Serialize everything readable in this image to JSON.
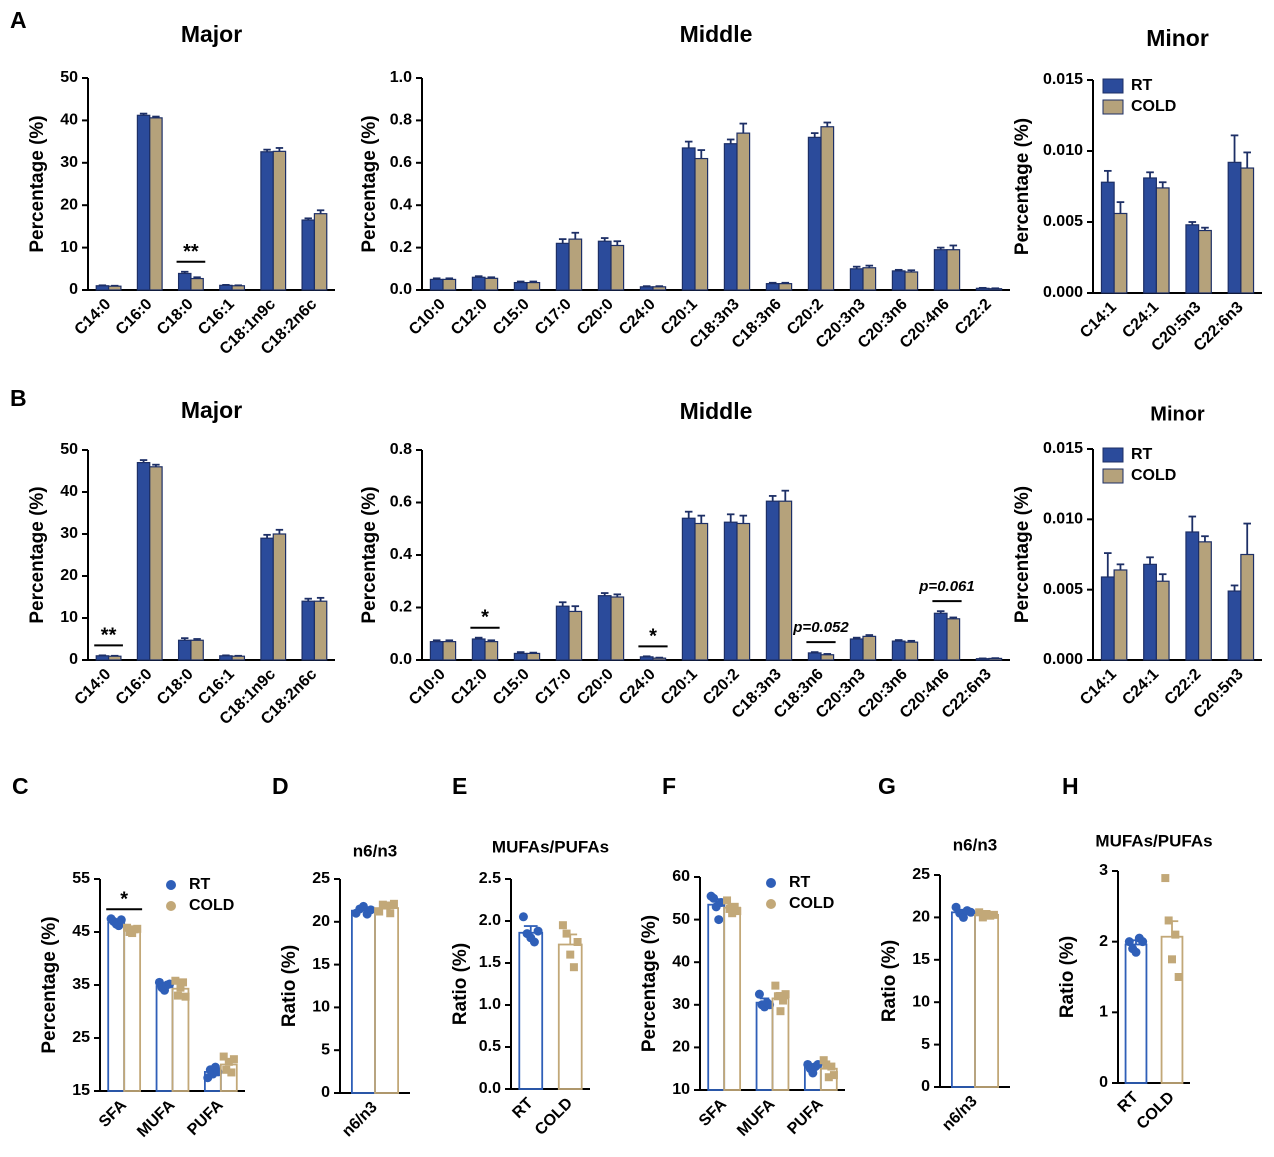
{
  "chart_data": [
    {
      "type": "bar",
      "panel": "A",
      "title": "Major",
      "ylabel": "Percentage (%)",
      "bar_fill": "solid",
      "categories": [
        "C14:0",
        "C16:0",
        "C18:0",
        "C16:1",
        "C18:1n9c",
        "C18:2n6c"
      ],
      "series": [
        {
          "name": "RT",
          "color": "#2b4b9b",
          "values": [
            1.0,
            41.2,
            3.9,
            1.1,
            32.6,
            16.5
          ],
          "errors": [
            0.1,
            0.4,
            0.4,
            0.1,
            0.5,
            0.4
          ]
        },
        {
          "name": "COLD",
          "color": "#b5a27b",
          "values": [
            0.9,
            40.6,
            2.7,
            1.0,
            32.7,
            18.0
          ],
          "errors": [
            0.1,
            0.3,
            0.3,
            0.1,
            0.8,
            0.8
          ]
        }
      ],
      "significance": [
        null,
        null,
        "**",
        null,
        null,
        null
      ],
      "ylim": [
        0,
        50
      ],
      "yticks": [
        0,
        10,
        20,
        30,
        40,
        50
      ]
    },
    {
      "type": "bar",
      "panel": null,
      "title": "Middle",
      "ylabel": "Percentage (%)",
      "bar_fill": "solid",
      "categories": [
        "C10:0",
        "C12:0",
        "C15:0",
        "C17:0",
        "C20:0",
        "C24:0",
        "C20:1",
        "C18:3n3",
        "C18:3n6",
        "C20:2",
        "C20:3n3",
        "C20:3n6",
        "C20:4n6",
        "C22:2"
      ],
      "series": [
        {
          "name": "RT",
          "color": "#2b4b9b",
          "values": [
            0.05,
            0.06,
            0.035,
            0.22,
            0.23,
            0.015,
            0.67,
            0.69,
            0.03,
            0.72,
            0.1,
            0.09,
            0.19,
            0.008
          ],
          "errors": [
            0.005,
            0.005,
            0.005,
            0.02,
            0.015,
            0.003,
            0.03,
            0.02,
            0.004,
            0.02,
            0.01,
            0.005,
            0.01,
            0.002
          ]
        },
        {
          "name": "COLD",
          "color": "#b5a27b",
          "values": [
            0.05,
            0.055,
            0.035,
            0.24,
            0.21,
            0.015,
            0.62,
            0.74,
            0.03,
            0.77,
            0.105,
            0.085,
            0.19,
            0.006
          ],
          "errors": [
            0.005,
            0.005,
            0.005,
            0.03,
            0.02,
            0.003,
            0.04,
            0.045,
            0.004,
            0.02,
            0.01,
            0.008,
            0.02,
            0.002
          ]
        }
      ],
      "ylim": [
        0,
        1
      ],
      "yticks": [
        {
          "value": 0,
          "label": "0.0"
        },
        0.2,
        0.4,
        0.6,
        0.8,
        {
          "value": 1,
          "label": "1.0"
        }
      ]
    },
    {
      "type": "bar",
      "panel": null,
      "title": "Minor",
      "ylabel": "Percentage (%)",
      "bar_fill": "solid",
      "legend": "upper left",
      "categories": [
        "C14:1",
        "C24:1",
        "C20:5n3",
        "C22:6n3"
      ],
      "series": [
        {
          "name": "RT",
          "color": "#2b4b9b",
          "values": [
            0.0078,
            0.0081,
            0.0048,
            0.0092
          ],
          "errors": [
            0.0008,
            0.0004,
            0.0002,
            0.0019
          ]
        },
        {
          "name": "COLD",
          "color": "#b5a27b",
          "values": [
            0.0056,
            0.0074,
            0.0044,
            0.0088
          ],
          "errors": [
            0.0008,
            0.0004,
            0.0002,
            0.0011
          ]
        }
      ],
      "ylim": [
        0,
        0.015
      ],
      "yticks": [
        {
          "value": 0,
          "label": "0.000"
        },
        0.005,
        {
          "value": 0.01,
          "label": "0.010"
        },
        0.015
      ]
    },
    {
      "type": "bar",
      "panel": "B",
      "title": "Major",
      "ylabel": "Percentage (%)",
      "bar_fill": "solid",
      "categories": [
        "C14:0",
        "C16:0",
        "C18:0",
        "C16:1",
        "C18:1n9c",
        "C18:2n6c"
      ],
      "series": [
        {
          "name": "RT",
          "color": "#2b4b9b",
          "values": [
            1.0,
            47,
            4.7,
            1.0,
            29,
            14
          ],
          "errors": [
            0.1,
            0.6,
            0.5,
            0.1,
            0.8,
            0.6
          ]
        },
        {
          "name": "COLD",
          "color": "#b5a27b",
          "values": [
            0.9,
            46,
            4.7,
            0.9,
            30,
            14
          ],
          "errors": [
            0.1,
            0.5,
            0.3,
            0.1,
            1.0,
            0.8
          ]
        }
      ],
      "significance": [
        "**",
        null,
        null,
        null,
        null,
        null
      ],
      "ylim": [
        0,
        50
      ],
      "yticks": [
        0,
        10,
        20,
        30,
        40,
        50
      ]
    },
    {
      "type": "bar",
      "panel": null,
      "title": "Middle",
      "ylabel": "Percentage (%)",
      "bar_fill": "solid",
      "categories": [
        "C10:0",
        "C12:0",
        "C15:0",
        "C17:0",
        "C20:0",
        "C24:0",
        "C20:1",
        "C20:2",
        "C18:3n3",
        "C18:3n6",
        "C20:3n3",
        "C20:3n6",
        "C20:4n6",
        "C22:6n3"
      ],
      "series": [
        {
          "name": "RT",
          "color": "#2b4b9b",
          "values": [
            0.07,
            0.08,
            0.025,
            0.205,
            0.245,
            0.012,
            0.54,
            0.525,
            0.605,
            0.027,
            0.08,
            0.072,
            0.178,
            0.005
          ],
          "errors": [
            0.005,
            0.005,
            0.005,
            0.015,
            0.01,
            0.002,
            0.025,
            0.03,
            0.02,
            0.003,
            0.005,
            0.004,
            0.008,
            0.001
          ]
        },
        {
          "name": "COLD",
          "color": "#b5a27b",
          "values": [
            0.07,
            0.07,
            0.025,
            0.185,
            0.24,
            0.007,
            0.52,
            0.52,
            0.605,
            0.02,
            0.09,
            0.068,
            0.157,
            0.006
          ],
          "errors": [
            0.005,
            0.005,
            0.003,
            0.02,
            0.01,
            0.002,
            0.03,
            0.03,
            0.04,
            0.003,
            0.005,
            0.005,
            0.005,
            0.001
          ]
        }
      ],
      "significance": [
        null,
        "*",
        null,
        null,
        null,
        "*",
        null,
        null,
        null,
        "p=0.052",
        null,
        null,
        "p=0.061",
        null
      ],
      "ylim": [
        0,
        0.8
      ],
      "yticks": [
        {
          "value": 0,
          "label": "0.0"
        },
        0.2,
        0.4,
        0.6,
        0.8
      ]
    },
    {
      "type": "bar",
      "panel": null,
      "title": "Minor",
      "ylabel": "Percentage (%)",
      "bar_fill": "solid",
      "legend": "upper left",
      "categories": [
        "C14:1",
        "C24:1",
        "C22:2",
        "C20:5n3"
      ],
      "series": [
        {
          "name": "RT",
          "color": "#2b4b9b",
          "values": [
            0.0059,
            0.0068,
            0.0091,
            0.0049
          ],
          "errors": [
            0.0017,
            0.0005,
            0.0011,
            0.0004
          ]
        },
        {
          "name": "COLD",
          "color": "#b5a27b",
          "values": [
            0.0064,
            0.0056,
            0.0084,
            0.0075
          ],
          "errors": [
            0.0004,
            0.0005,
            0.0004,
            0.0022
          ]
        }
      ],
      "ylim": [
        0,
        0.015
      ],
      "yticks": [
        {
          "value": 0,
          "label": "0.000"
        },
        0.005,
        {
          "value": 0.01,
          "label": "0.010"
        },
        0.015
      ]
    },
    {
      "type": "bar",
      "panel": "C",
      "title": null,
      "ylabel": "Percentage (%)",
      "bar_fill": "outline",
      "legend": "upper right",
      "categories": [
        "SFA",
        "MUFA",
        "PUFA"
      ],
      "series": [
        {
          "name": "RT",
          "color": "#2f5fb8",
          "marker": "circle",
          "values": [
            46.8,
            34.8,
            18.6
          ],
          "errors": [
            0.6,
            0.6,
            0.8
          ],
          "points": [
            [
              47.5,
              47.0,
              46.5,
              46.2,
              47.3
            ],
            [
              35.5,
              34.5,
              34.0,
              35.0,
              35.2
            ],
            [
              17.5,
              19.0,
              18.2,
              19.5,
              18.6
            ]
          ]
        },
        {
          "name": "COLD",
          "color": "#c2a878",
          "marker": "square",
          "values": [
            45.3,
            34.3,
            20.0
          ],
          "errors": [
            0.5,
            1.0,
            1.0
          ],
          "points": [
            [
              45.8,
              45.0,
              44.8,
              45.5,
              45.6
            ],
            [
              35.8,
              33.0,
              34.5,
              35.5,
              32.8
            ],
            [
              21.5,
              19.0,
              20.5,
              18.5,
              21.0
            ]
          ]
        }
      ],
      "significance": [
        "*",
        null,
        null
      ],
      "ylim": [
        15,
        55
      ],
      "yticks": [
        15,
        25,
        35,
        45,
        55
      ]
    },
    {
      "type": "bar",
      "panel": "D",
      "title": "n6/n3",
      "ylabel": "Ratio (%)",
      "bar_fill": "outline",
      "categories": [
        "n6/n3"
      ],
      "series": [
        {
          "name": "RT",
          "color": "#2f5fb8",
          "marker": "circle",
          "values": [
            21.3
          ],
          "errors": [
            0.3
          ],
          "points": [
            [
              21.0,
              21.5,
              21.8,
              20.9,
              21.4
            ]
          ]
        },
        {
          "name": "COLD",
          "color": "#c2a878",
          "marker": "square",
          "values": [
            21.6
          ],
          "errors": [
            0.4
          ],
          "points": [
            [
              21.2,
              22.0,
              21.9,
              21.0,
              22.1
            ]
          ]
        }
      ],
      "ylim": [
        0,
        25
      ],
      "yticks": [
        0,
        5,
        10,
        15,
        20,
        25
      ]
    },
    {
      "type": "bar",
      "panel": "E",
      "title": "MUFAs/PUFAs",
      "ylabel": "Ratio (%)",
      "bar_fill": "outline",
      "series_as_categories": true,
      "series": [
        {
          "name": "RT",
          "color": "#2f5fb8",
          "marker": "circle",
          "values": [
            1.86
          ],
          "errors": [
            0.08
          ],
          "points": [
            [
              2.05,
              1.85,
              1.8,
              1.75,
              1.88
            ]
          ]
        },
        {
          "name": "COLD",
          "color": "#c2a878",
          "marker": "square",
          "values": [
            1.72
          ],
          "errors": [
            0.12
          ],
          "points": [
            [
              1.95,
              1.85,
              1.6,
              1.45,
              1.75
            ]
          ]
        }
      ],
      "ylim": [
        0,
        2.5
      ],
      "yticks": [
        {
          "value": 0,
          "label": "0.0"
        },
        0.5,
        {
          "value": 1,
          "label": "1.0"
        },
        1.5,
        {
          "value": 2,
          "label": "2.0"
        },
        2.5
      ]
    },
    {
      "type": "bar",
      "panel": "F",
      "title": null,
      "ylabel": "Percentage (%)",
      "bar_fill": "outline",
      "legend": "upper right",
      "categories": [
        "SFA",
        "MUFA",
        "PUFA"
      ],
      "series": [
        {
          "name": "RT",
          "color": "#2f5fb8",
          "marker": "circle",
          "values": [
            53.5,
            30.5,
            15.3
          ],
          "errors": [
            1.3,
            1.0,
            0.8
          ],
          "points": [
            [
              55.5,
              55.0,
              53.0,
              50.0,
              54.0
            ],
            [
              32.5,
              30.0,
              29.5,
              30.5,
              30.0
            ],
            [
              16.0,
              15.0,
              14.0,
              15.5,
              16.0
            ]
          ]
        },
        {
          "name": "COLD",
          "color": "#c2a878",
          "marker": "square",
          "values": [
            52.8,
            31.5,
            15.0
          ],
          "errors": [
            0.8,
            1.3,
            1.0
          ],
          "points": [
            [
              54.5,
              52.5,
              51.5,
              53.0,
              52.0
            ],
            [
              34.5,
              32.0,
              28.5,
              31.0,
              32.5
            ],
            [
              17.0,
              16.0,
              13.0,
              15.5,
              13.5
            ]
          ]
        }
      ],
      "ylim": [
        10,
        60
      ],
      "yticks": [
        10,
        20,
        30,
        40,
        50,
        60
      ]
    },
    {
      "type": "bar",
      "panel": "G",
      "title": "n6/n3",
      "ylabel": "Ratio (%)",
      "bar_fill": "outline",
      "categories": [
        "n6/n3"
      ],
      "series": [
        {
          "name": "RT",
          "color": "#2f5fb8",
          "marker": "circle",
          "values": [
            20.6
          ],
          "errors": [
            0.3
          ],
          "points": [
            [
              21.2,
              20.5,
              20.0,
              20.8,
              20.6
            ]
          ]
        },
        {
          "name": "COLD",
          "color": "#c2a878",
          "marker": "square",
          "values": [
            20.3
          ],
          "errors": [
            0.2
          ],
          "points": [
            [
              20.6,
              20.0,
              20.4,
              20.2,
              20.3
            ]
          ]
        }
      ],
      "ylim": [
        0,
        25
      ],
      "yticks": [
        0,
        5,
        10,
        15,
        20,
        25
      ]
    },
    {
      "type": "bar",
      "panel": "H",
      "title": "MUFAs/PUFAs",
      "ylabel": "Ratio (%)",
      "bar_fill": "outline",
      "series_as_categories": true,
      "series": [
        {
          "name": "RT",
          "color": "#2f5fb8",
          "marker": "circle",
          "values": [
            1.96
          ],
          "errors": [
            0.06
          ],
          "points": [
            [
              2.0,
              1.9,
              1.85,
              2.05,
              2.0
            ]
          ]
        },
        {
          "name": "COLD",
          "color": "#c2a878",
          "marker": "square",
          "values": [
            2.07
          ],
          "errors": [
            0.22
          ],
          "points": [
            [
              2.9,
              2.3,
              1.75,
              2.1,
              1.5
            ]
          ]
        }
      ],
      "ylim": [
        0,
        3
      ],
      "yticks": [
        0,
        1,
        2,
        3
      ]
    }
  ]
}
